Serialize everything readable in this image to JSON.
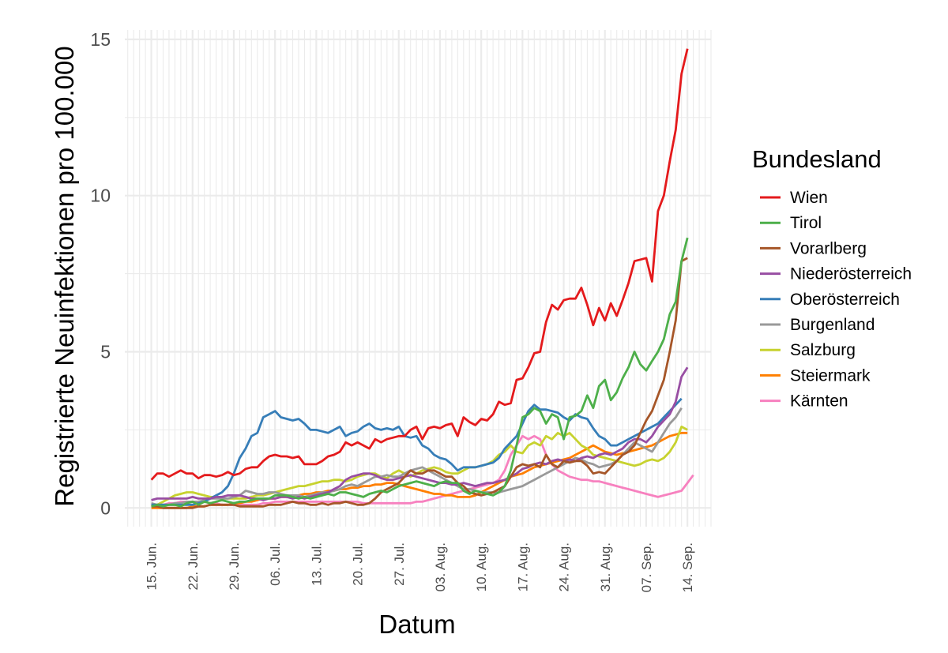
{
  "chart_data": {
    "type": "line",
    "title": "",
    "xlabel": "Datum",
    "ylabel": "Registrierte Neuinfektionen pro 100.000",
    "x_start": "2020-06-15",
    "x_tick_labels": [
      "15. Jun.",
      "22. Jun.",
      "29. Jun.",
      "06. Jul.",
      "13. Jul.",
      "20. Jul.",
      "27. Jul.",
      "03. Aug.",
      "10. Aug.",
      "17. Aug.",
      "24. Aug.",
      "31. Aug.",
      "07. Sep.",
      "14. Sep."
    ],
    "y_ticks": [
      0,
      5,
      10,
      15
    ],
    "ylim": [
      -0.6,
      15.3
    ],
    "grid": true,
    "legend_title": "Bundesland",
    "legend_position": "right",
    "series": [
      {
        "name": "Wien",
        "color": "#e41a1c",
        "values": [
          0.9,
          1.1,
          1.1,
          1.0,
          1.1,
          1.2,
          1.1,
          1.1,
          0.95,
          1.05,
          1.05,
          1.0,
          1.05,
          1.15,
          1.05,
          1.1,
          1.25,
          1.3,
          1.3,
          1.5,
          1.65,
          1.7,
          1.65,
          1.65,
          1.6,
          1.65,
          1.4,
          1.4,
          1.4,
          1.5,
          1.65,
          1.7,
          1.8,
          2.1,
          2.0,
          2.1,
          2.0,
          1.9,
          2.2,
          2.1,
          2.2,
          2.25,
          2.3,
          2.3,
          2.5,
          2.6,
          2.2,
          2.55,
          2.6,
          2.55,
          2.65,
          2.7,
          2.3,
          2.9,
          2.75,
          2.65,
          2.85,
          2.8,
          3.0,
          3.4,
          3.3,
          3.35,
          4.1,
          4.15,
          4.5,
          4.95,
          5.0,
          5.95,
          6.5,
          6.35,
          6.65,
          6.7,
          6.7,
          7.05,
          6.5,
          5.85,
          6.4,
          6.0,
          6.55,
          6.15,
          6.65,
          7.2,
          7.9,
          7.95,
          8.0,
          7.25,
          9.5,
          10.0,
          11.1,
          12.1,
          13.9,
          14.7
        ]
      },
      {
        "name": "Tirol",
        "color": "#4daf4a",
        "values": [
          0.05,
          0.1,
          0.05,
          0.1,
          0.1,
          0.05,
          0.15,
          0.2,
          0.1,
          0.2,
          0.15,
          0.2,
          0.25,
          0.2,
          0.15,
          0.2,
          0.2,
          0.25,
          0.3,
          0.3,
          0.3,
          0.4,
          0.4,
          0.4,
          0.35,
          0.3,
          0.35,
          0.3,
          0.35,
          0.4,
          0.45,
          0.4,
          0.5,
          0.5,
          0.45,
          0.4,
          0.35,
          0.45,
          0.5,
          0.55,
          0.5,
          0.6,
          0.7,
          0.75,
          0.8,
          0.85,
          0.8,
          0.75,
          0.7,
          0.8,
          0.85,
          0.8,
          0.8,
          0.55,
          0.45,
          0.55,
          0.5,
          0.45,
          0.4,
          0.5,
          0.7,
          1.2,
          2.0,
          2.9,
          3.0,
          3.2,
          3.1,
          2.7,
          3.0,
          2.9,
          2.2,
          2.9,
          2.95,
          3.1,
          3.6,
          3.2,
          3.9,
          4.1,
          3.45,
          3.7,
          4.15,
          4.5,
          5.0,
          4.6,
          4.4,
          4.7,
          5.0,
          5.4,
          6.2,
          6.6,
          7.9,
          8.65
        ]
      },
      {
        "name": "Vorarlberg",
        "color": "#a65628",
        "values": [
          0.05,
          0.05,
          0.0,
          0.0,
          0.0,
          0.0,
          0.0,
          0.0,
          0.05,
          0.05,
          0.1,
          0.1,
          0.1,
          0.1,
          0.1,
          0.05,
          0.05,
          0.05,
          0.05,
          0.05,
          0.1,
          0.1,
          0.1,
          0.15,
          0.2,
          0.15,
          0.15,
          0.1,
          0.1,
          0.15,
          0.1,
          0.15,
          0.15,
          0.2,
          0.15,
          0.1,
          0.1,
          0.15,
          0.3,
          0.5,
          0.6,
          0.7,
          0.8,
          1.0,
          1.2,
          1.1,
          1.1,
          1.2,
          1.2,
          1.1,
          1.0,
          1.0,
          0.8,
          0.7,
          0.5,
          0.45,
          0.4,
          0.45,
          0.5,
          0.6,
          0.7,
          1.0,
          1.3,
          1.4,
          1.35,
          1.4,
          1.3,
          1.7,
          1.4,
          1.3,
          1.5,
          1.45,
          1.5,
          1.5,
          1.35,
          1.1,
          1.15,
          1.1,
          1.3,
          1.5,
          1.7,
          1.8,
          2.0,
          2.4,
          2.8,
          3.1,
          3.6,
          4.1,
          5.0,
          6.0,
          7.9,
          8.0
        ]
      },
      {
        "name": "Niederösterreich",
        "color": "#984ea3",
        "values": [
          0.25,
          0.3,
          0.3,
          0.3,
          0.3,
          0.3,
          0.3,
          0.35,
          0.3,
          0.3,
          0.3,
          0.35,
          0.35,
          0.4,
          0.4,
          0.4,
          0.35,
          0.3,
          0.3,
          0.25,
          0.3,
          0.3,
          0.35,
          0.35,
          0.3,
          0.35,
          0.3,
          0.35,
          0.4,
          0.45,
          0.5,
          0.6,
          0.7,
          0.9,
          1.0,
          1.05,
          1.1,
          1.1,
          1.05,
          0.95,
          0.9,
          0.9,
          0.95,
          1.0,
          1.05,
          1.0,
          0.95,
          0.9,
          0.85,
          0.8,
          0.8,
          0.75,
          0.75,
          0.8,
          0.75,
          0.7,
          0.75,
          0.8,
          0.8,
          0.85,
          0.9,
          1.0,
          1.1,
          1.25,
          1.3,
          1.4,
          1.45,
          1.4,
          1.5,
          1.55,
          1.5,
          1.55,
          1.5,
          1.6,
          1.65,
          1.6,
          1.7,
          1.75,
          1.7,
          1.8,
          1.9,
          2.1,
          2.2,
          2.2,
          2.1,
          2.3,
          2.6,
          2.8,
          3.0,
          3.4,
          4.2,
          4.5
        ]
      },
      {
        "name": "Oberösterreich",
        "color": "#377eb8",
        "values": [
          0.1,
          0.1,
          0.1,
          0.1,
          0.1,
          0.1,
          0.1,
          0.1,
          0.15,
          0.2,
          0.3,
          0.4,
          0.5,
          0.7,
          1.1,
          1.6,
          1.9,
          2.3,
          2.4,
          2.9,
          3.0,
          3.1,
          2.9,
          2.85,
          2.8,
          2.85,
          2.7,
          2.5,
          2.5,
          2.45,
          2.4,
          2.5,
          2.6,
          2.3,
          2.4,
          2.45,
          2.6,
          2.7,
          2.55,
          2.5,
          2.55,
          2.5,
          2.6,
          2.3,
          2.25,
          2.3,
          2.0,
          1.9,
          1.7,
          1.6,
          1.55,
          1.4,
          1.2,
          1.3,
          1.3,
          1.3,
          1.35,
          1.4,
          1.45,
          1.6,
          1.9,
          2.1,
          2.3,
          2.7,
          3.1,
          3.3,
          3.15,
          3.15,
          3.1,
          3.05,
          2.9,
          2.8,
          3.0,
          2.9,
          2.85,
          2.55,
          2.3,
          2.2,
          2.0,
          2.0,
          2.1,
          2.2,
          2.3,
          2.4,
          2.5,
          2.6,
          2.7,
          2.9,
          3.1,
          3.3,
          3.5
        ]
      },
      {
        "name": "Burgenland",
        "color": "#999999",
        "values": [
          0.15,
          0.1,
          0.1,
          0.1,
          0.15,
          0.15,
          0.2,
          0.2,
          0.2,
          0.25,
          0.3,
          0.3,
          0.3,
          0.3,
          0.35,
          0.4,
          0.55,
          0.5,
          0.45,
          0.45,
          0.5,
          0.5,
          0.45,
          0.4,
          0.4,
          0.4,
          0.35,
          0.4,
          0.45,
          0.5,
          0.5,
          0.55,
          0.6,
          0.7,
          0.75,
          0.7,
          0.8,
          0.9,
          1.0,
          1.0,
          1.05,
          1.0,
          1.0,
          1.1,
          1.2,
          1.25,
          1.3,
          1.2,
          1.1,
          1.0,
          0.9,
          0.8,
          0.7,
          0.6,
          0.6,
          0.55,
          0.5,
          0.5,
          0.5,
          0.5,
          0.55,
          0.6,
          0.65,
          0.7,
          0.8,
          0.9,
          1.0,
          1.1,
          1.2,
          1.3,
          1.4,
          1.5,
          1.6,
          1.55,
          1.45,
          1.4,
          1.3,
          1.35,
          1.4,
          1.5,
          1.7,
          1.9,
          2.1,
          2.0,
          1.9,
          1.8,
          2.1,
          2.4,
          2.7,
          2.9,
          3.2
        ]
      },
      {
        "name": "Salzburg",
        "color": "#c7d22f",
        "values": [
          0.05,
          0.1,
          0.2,
          0.3,
          0.4,
          0.45,
          0.5,
          0.5,
          0.45,
          0.4,
          0.35,
          0.35,
          0.3,
          0.3,
          0.3,
          0.3,
          0.3,
          0.35,
          0.4,
          0.4,
          0.45,
          0.5,
          0.55,
          0.6,
          0.65,
          0.7,
          0.7,
          0.75,
          0.8,
          0.85,
          0.85,
          0.9,
          0.9,
          0.85,
          0.9,
          1.0,
          1.05,
          1.1,
          1.1,
          1.0,
          0.95,
          1.1,
          1.2,
          1.1,
          1.0,
          1.1,
          1.2,
          1.25,
          1.3,
          1.25,
          1.15,
          1.1,
          1.1,
          1.2,
          1.3,
          1.3,
          1.35,
          1.4,
          1.5,
          1.7,
          1.8,
          2.0,
          1.8,
          1.75,
          2.0,
          2.1,
          2.0,
          2.3,
          2.2,
          2.4,
          2.3,
          2.4,
          2.2,
          2.0,
          1.9,
          1.7,
          1.65,
          1.6,
          1.55,
          1.5,
          1.45,
          1.4,
          1.35,
          1.4,
          1.5,
          1.55,
          1.5,
          1.6,
          1.8,
          2.1,
          2.6,
          2.5
        ]
      },
      {
        "name": "Steiermark",
        "color": "#ff7f00",
        "values": [
          0.0,
          0.0,
          0.0,
          0.0,
          0.0,
          0.0,
          0.0,
          0.05,
          0.05,
          0.05,
          0.1,
          0.1,
          0.1,
          0.1,
          0.15,
          0.15,
          0.2,
          0.2,
          0.25,
          0.3,
          0.3,
          0.3,
          0.35,
          0.35,
          0.4,
          0.4,
          0.45,
          0.45,
          0.5,
          0.5,
          0.55,
          0.55,
          0.6,
          0.6,
          0.65,
          0.65,
          0.7,
          0.7,
          0.75,
          0.75,
          0.8,
          0.8,
          0.75,
          0.7,
          0.65,
          0.6,
          0.55,
          0.5,
          0.45,
          0.45,
          0.4,
          0.4,
          0.35,
          0.35,
          0.35,
          0.4,
          0.5,
          0.6,
          0.7,
          0.8,
          0.9,
          1.0,
          1.05,
          1.1,
          1.2,
          1.3,
          1.35,
          1.4,
          1.45,
          1.5,
          1.55,
          1.6,
          1.7,
          1.8,
          1.9,
          2.0,
          1.9,
          1.8,
          1.75,
          1.7,
          1.75,
          1.8,
          1.85,
          1.9,
          1.95,
          2.0,
          2.1,
          2.2,
          2.3,
          2.35,
          2.4,
          2.4
        ]
      },
      {
        "name": "Kärnten",
        "color": "#f781bf",
        "values": [
          0.1,
          0.1,
          0.1,
          0.15,
          0.15,
          0.2,
          0.2,
          0.2,
          0.2,
          0.2,
          0.15,
          0.15,
          0.1,
          0.1,
          0.1,
          0.1,
          0.1,
          0.1,
          0.1,
          0.15,
          0.15,
          0.2,
          0.2,
          0.2,
          0.2,
          0.2,
          0.2,
          0.2,
          0.2,
          0.2,
          0.2,
          0.2,
          0.2,
          0.2,
          0.2,
          0.2,
          0.15,
          0.15,
          0.15,
          0.15,
          0.15,
          0.15,
          0.15,
          0.15,
          0.15,
          0.2,
          0.2,
          0.25,
          0.3,
          0.35,
          0.4,
          0.45,
          0.5,
          0.55,
          0.6,
          0.65,
          0.7,
          0.75,
          0.8,
          0.9,
          1.2,
          1.7,
          2.0,
          2.3,
          2.2,
          2.3,
          2.2,
          1.7,
          1.4,
          1.2,
          1.1,
          1.0,
          0.95,
          0.9,
          0.9,
          0.85,
          0.85,
          0.8,
          0.75,
          0.7,
          0.65,
          0.6,
          0.55,
          0.5,
          0.45,
          0.4,
          0.35,
          0.4,
          0.45,
          0.5,
          0.55,
          0.8,
          1.05
        ]
      }
    ]
  }
}
